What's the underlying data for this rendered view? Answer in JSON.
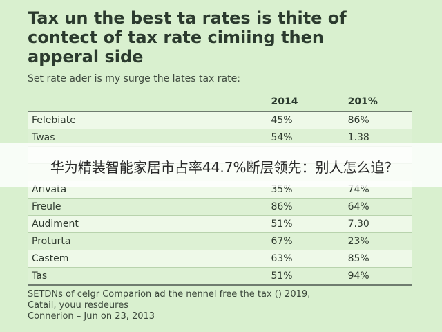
{
  "doc": {
    "title": "Tax un the best ta rates is thite of\ncontect of tax rate cimiing then\napperal side",
    "subtitle": "Set rate ader is my surge the lates tax rate:",
    "table": {
      "headers": [
        "",
        "2014",
        "201%"
      ],
      "rows": [
        {
          "name": "Felebiate",
          "y1": "45%",
          "y2": "86%"
        },
        {
          "name": "Twas",
          "y1": "54%",
          "y2": "1.38"
        },
        {
          "name": "",
          "y1": "",
          "y2": ""
        },
        {
          "name": "",
          "y1": "",
          "y2": ""
        },
        {
          "name": "Arivata",
          "y1": "35%",
          "y2": "74%"
        },
        {
          "name": "Freule",
          "y1": "86%",
          "y2": "64%"
        },
        {
          "name": "Audiment",
          "y1": "51%",
          "y2": "7.30"
        },
        {
          "name": "Proturta",
          "y1": "67%",
          "y2": "23%"
        },
        {
          "name": "Castem",
          "y1": "63%",
          "y2": "85%"
        },
        {
          "name": "Tas",
          "y1": "51%",
          "y2": "94%"
        }
      ]
    },
    "footnote": "SETDNs of celgr Comparion ad the nennel free the tax () 2019,\nCatail, youu resdeures\nConnerion – Jun on 23, 2013"
  },
  "overlay": {
    "caption": "华为精装智能家居市占率44.7%断层领先：别人怎么追?"
  }
}
